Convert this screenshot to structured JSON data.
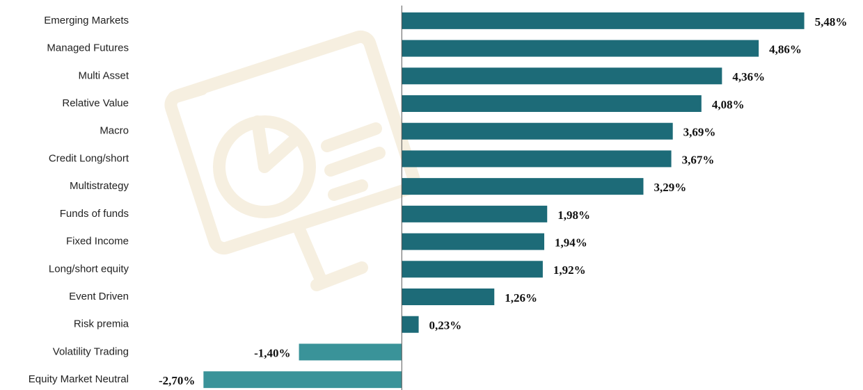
{
  "chart_data": {
    "type": "hbar",
    "categories": [
      "Emerging Markets",
      "Managed Futures",
      "Multi Asset",
      "Relative Value",
      "Macro",
      "Credit Long/short",
      "Multistrategy",
      "Funds of funds",
      "Fixed Income",
      "Long/short equity",
      "Event Driven",
      "Risk premia",
      "Volatility Trading",
      "Equity Market Neutral"
    ],
    "values": [
      5.48,
      4.86,
      4.36,
      4.08,
      3.69,
      3.67,
      3.29,
      1.98,
      1.94,
      1.92,
      1.26,
      0.23,
      -1.4,
      -2.7
    ],
    "value_labels": [
      "5,48%",
      "4,86%",
      "4,36%",
      "4,08%",
      "3,69%",
      "3,67%",
      "3,29%",
      "1,98%",
      "1,94%",
      "1,92%",
      "1,26%",
      "0,23%",
      "-1,40%",
      "-2,70%"
    ],
    "color": "#1d6b78",
    "negative_color": "#3a9399",
    "xlim": [
      -3.67,
      6.28
    ]
  }
}
